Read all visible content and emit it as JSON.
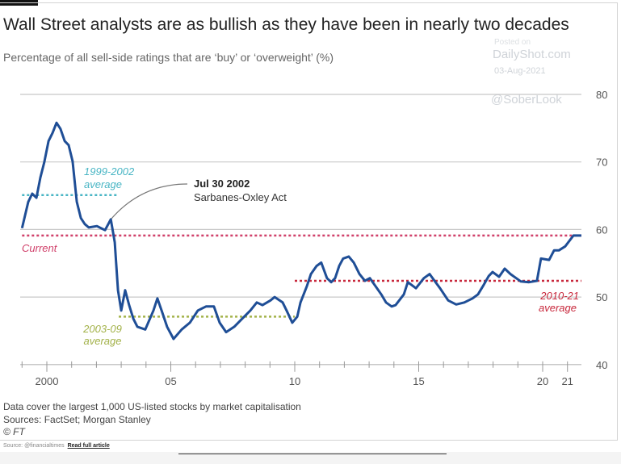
{
  "header": {
    "title": "Wall Street analysts are as bullish as they have been in nearly two decades",
    "subtitle": "Percentage of all sell-side ratings that are ‘buy’ or ‘overweight’ (%)"
  },
  "watermark": {
    "posted": "Posted on",
    "site": "DailyShot.com",
    "date": "03-Aug-2021",
    "user": "@SoberLook"
  },
  "footer": {
    "notes": [
      "Data cover the largest 1,000 US-listed stocks by market capitalisation",
      "Sources: FactSet; Morgan Stanley",
      "© FT"
    ],
    "source": "Source: @financialtimes",
    "read_more": "Read full article"
  },
  "chart_data": {
    "type": "line",
    "title": "Wall Street analysts are as bullish as they have been in nearly two decades",
    "subtitle": "Percentage of all sell-side ratings that are ‘buy’ or ‘overweight’ (%)",
    "xlim": [
      1999,
      2021.7
    ],
    "ylim": [
      40,
      80
    ],
    "grid": true,
    "xticks": [
      {
        "value": 2000,
        "label": "2000"
      },
      {
        "value": 2005,
        "label": "05"
      },
      {
        "value": 2010,
        "label": "10"
      },
      {
        "value": 2015,
        "label": "15"
      },
      {
        "value": 2020,
        "label": "20"
      },
      {
        "value": 2021,
        "label": "21"
      }
    ],
    "yticks": [
      40,
      50,
      60,
      70,
      80
    ],
    "colors": {
      "series": "#1f4e96",
      "avg_9902": "#48b5c4",
      "current": "#d0406a",
      "avg_0309": "#a3b24a",
      "avg_1021": "#c8283c"
    },
    "series": [
      {
        "x": [
          1999.0,
          1999.25,
          1999.41,
          1999.58,
          1999.74,
          1999.9,
          2000.07,
          2000.23,
          2000.39,
          2000.55,
          2000.72,
          2000.88,
          2001.04,
          2001.21,
          2001.37,
          2001.53,
          2001.69,
          2002.02,
          2002.35,
          2002.58,
          2002.74,
          2002.87,
          2003.0,
          2003.16,
          2003.32,
          2003.49,
          2003.65,
          2003.97,
          2004.3,
          2004.46,
          2004.63,
          2004.85,
          2005.11,
          2005.44,
          2005.77,
          2006.09,
          2006.42,
          2006.74,
          2006.97,
          2007.23,
          2007.56,
          2007.88,
          2008.21,
          2008.47,
          2008.7,
          2009.02,
          2009.19,
          2009.51,
          2009.67,
          2009.9,
          2010.1,
          2010.23,
          2010.49,
          2010.65,
          2010.88,
          2011.07,
          2011.3,
          2011.47,
          2011.63,
          2011.79,
          2011.95,
          2012.18,
          2012.38,
          2012.61,
          2012.83,
          2013.03,
          2013.26,
          2013.49,
          2013.68,
          2013.91,
          2014.07,
          2014.4,
          2014.56,
          2014.89,
          2015.21,
          2015.44,
          2015.64,
          2015.86,
          2016.19,
          2016.51,
          2016.84,
          2017.17,
          2017.39,
          2017.59,
          2017.82,
          2017.98,
          2018.24,
          2018.47,
          2018.7,
          2019.12,
          2019.45,
          2019.77,
          2019.93,
          2020.26,
          2020.46,
          2020.65,
          2020.91,
          2021.24,
          2021.56
        ],
        "y": [
          60.2,
          64.1,
          65.3,
          64.7,
          67.7,
          70.0,
          73.1,
          74.3,
          75.8,
          74.9,
          73.1,
          72.5,
          70.1,
          64.1,
          61.7,
          60.8,
          60.3,
          60.5,
          59.9,
          61.5,
          58.1,
          51.0,
          48.0,
          51.0,
          48.8,
          46.8,
          45.6,
          45.2,
          48.0,
          49.8,
          48.0,
          45.6,
          43.8,
          45.2,
          46.2,
          48.0,
          48.6,
          48.6,
          46.2,
          44.8,
          45.6,
          46.8,
          48.0,
          49.2,
          48.8,
          49.5,
          50.0,
          49.2,
          48.0,
          46.2,
          47.1,
          49.2,
          51.6,
          53.4,
          54.6,
          55.1,
          52.8,
          52.2,
          52.8,
          54.6,
          55.7,
          56.0,
          55.1,
          53.4,
          52.4,
          52.8,
          51.6,
          50.4,
          49.2,
          48.6,
          48.8,
          50.4,
          52.2,
          51.3,
          52.8,
          53.4,
          52.4,
          51.3,
          49.5,
          48.9,
          49.2,
          49.8,
          50.4,
          51.6,
          53.1,
          53.7,
          53.0,
          54.2,
          53.4,
          52.3,
          52.2,
          52.4,
          55.7,
          55.5,
          56.9,
          56.9,
          57.5,
          59.1,
          59.1
        ]
      }
    ],
    "reference_lines": [
      {
        "label": "1999-2002 average",
        "value": 65.1,
        "from": 1999,
        "to": 2002.9,
        "color": "#48b5c4"
      },
      {
        "label": "Current",
        "value": 59.1,
        "from": 1999,
        "to": 2021.56,
        "color": "#d0406a"
      },
      {
        "label": "2003-09 average",
        "value": 47.1,
        "from": 2002.9,
        "to": 2010,
        "color": "#a3b24a"
      },
      {
        "label": "2010-21 average",
        "value": 52.4,
        "from": 2010,
        "to": 2021.56,
        "color": "#c8283c"
      }
    ],
    "annotations": [
      {
        "x": 2002.58,
        "y": 61.5,
        "title": "Jul 30 2002",
        "text": "Sarbanes-Oxley Act"
      }
    ]
  }
}
